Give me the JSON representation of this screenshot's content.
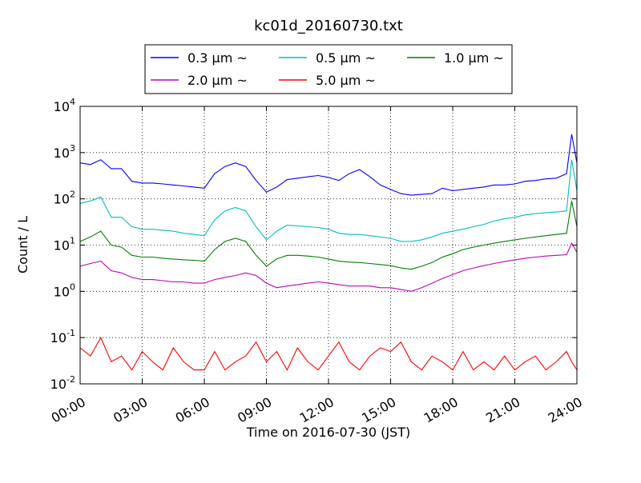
{
  "chart_data": {
    "type": "line",
    "title": "kc01d_20160730.txt",
    "xlabel": "Time on 2016-07-30 (JST)",
    "ylabel": "Count / L",
    "yscale": "log",
    "xlim": [
      "00:00",
      "24:00"
    ],
    "ylim": [
      0.01,
      10000
    ],
    "grid": true,
    "legend_position": "top",
    "x_ticks": [
      "00:00",
      "03:00",
      "06:00",
      "09:00",
      "12:00",
      "15:00",
      "18:00",
      "21:00",
      "24:00"
    ],
    "y_ticks": [
      {
        "base": "10",
        "exp": "-2",
        "value": 0.01
      },
      {
        "base": "10",
        "exp": "-1",
        "value": 0.1
      },
      {
        "base": "10",
        "exp": "0",
        "value": 1
      },
      {
        "base": "10",
        "exp": "1",
        "value": 10
      },
      {
        "base": "10",
        "exp": "2",
        "value": 100
      },
      {
        "base": "10",
        "exp": "3",
        "value": 1000
      },
      {
        "base": "10",
        "exp": "4",
        "value": 10000
      }
    ],
    "x": [
      "00:00",
      "00:30",
      "01:00",
      "01:30",
      "02:00",
      "02:30",
      "03:00",
      "03:30",
      "04:00",
      "04:30",
      "05:00",
      "05:30",
      "06:00",
      "06:30",
      "07:00",
      "07:30",
      "08:00",
      "08:30",
      "09:00",
      "09:30",
      "10:00",
      "10:30",
      "11:00",
      "11:30",
      "12:00",
      "12:30",
      "13:00",
      "13:30",
      "14:00",
      "14:30",
      "15:00",
      "15:30",
      "16:00",
      "16:30",
      "17:00",
      "17:30",
      "18:00",
      "18:30",
      "19:00",
      "19:30",
      "20:00",
      "20:30",
      "21:00",
      "21:30",
      "22:00",
      "22:30",
      "23:00",
      "23:30",
      "23:45",
      "24:00"
    ],
    "series": [
      {
        "name": "0.3 μm ~",
        "color": "#0000ff",
        "values": [
          600,
          550,
          700,
          450,
          450,
          240,
          220,
          220,
          210,
          200,
          190,
          180,
          170,
          350,
          500,
          600,
          500,
          250,
          140,
          180,
          260,
          280,
          300,
          320,
          290,
          250,
          350,
          430,
          300,
          200,
          160,
          130,
          120,
          125,
          130,
          170,
          150,
          160,
          170,
          180,
          200,
          200,
          210,
          240,
          250,
          270,
          280,
          350,
          2500,
          600
        ]
      },
      {
        "name": "0.5 μm ~",
        "color": "#00bfbf",
        "values": [
          80,
          90,
          110,
          40,
          40,
          25,
          22,
          22,
          21,
          20,
          18,
          17,
          16,
          35,
          55,
          65,
          55,
          25,
          13,
          20,
          27,
          26,
          25,
          24,
          22,
          18,
          17,
          17,
          16,
          15,
          14,
          12,
          12,
          13,
          15,
          18,
          20,
          22,
          25,
          28,
          33,
          37,
          40,
          45,
          48,
          50,
          52,
          55,
          700,
          150
        ]
      },
      {
        "name": "1.0 μm ~",
        "color": "#008000",
        "values": [
          12,
          15,
          20,
          10,
          9,
          6,
          5.5,
          5.5,
          5.2,
          5,
          4.8,
          4.7,
          4.5,
          8,
          12,
          14,
          12,
          6,
          3.5,
          5,
          6,
          6,
          5.8,
          5.5,
          5,
          4.5,
          4.3,
          4.2,
          4,
          3.8,
          3.6,
          3.2,
          3,
          3.5,
          4.2,
          5.5,
          6.5,
          8,
          9,
          10,
          11,
          12,
          13,
          14,
          15,
          16,
          17,
          18,
          90,
          25
        ]
      },
      {
        "name": "2.0 μm ~",
        "color": "#bf00bf",
        "values": [
          3.5,
          4,
          4.5,
          2.8,
          2.5,
          2,
          1.8,
          1.8,
          1.7,
          1.6,
          1.6,
          1.5,
          1.5,
          1.8,
          2,
          2.2,
          2.5,
          2.2,
          1.5,
          1.2,
          1.3,
          1.4,
          1.5,
          1.6,
          1.5,
          1.4,
          1.3,
          1.3,
          1.3,
          1.2,
          1.2,
          1.1,
          1,
          1.2,
          1.5,
          1.9,
          2.3,
          2.8,
          3.2,
          3.6,
          4,
          4.4,
          4.8,
          5.2,
          5.5,
          5.8,
          6,
          6.2,
          11,
          7
        ]
      },
      {
        "name": "5.0 μm ~",
        "color": "#ff0000",
        "values": [
          0.06,
          0.04,
          0.1,
          0.03,
          0.04,
          0.02,
          0.05,
          0.03,
          0.02,
          0.06,
          0.03,
          0.02,
          0.02,
          0.05,
          0.02,
          0.03,
          0.04,
          0.08,
          0.03,
          0.05,
          0.02,
          0.06,
          0.03,
          0.02,
          0.04,
          0.08,
          0.03,
          0.02,
          0.04,
          0.06,
          0.05,
          0.08,
          0.03,
          0.02,
          0.04,
          0.03,
          0.02,
          0.05,
          0.02,
          0.03,
          0.02,
          0.04,
          0.02,
          0.03,
          0.04,
          0.02,
          0.03,
          0.05,
          0.03,
          0.02
        ]
      }
    ]
  }
}
